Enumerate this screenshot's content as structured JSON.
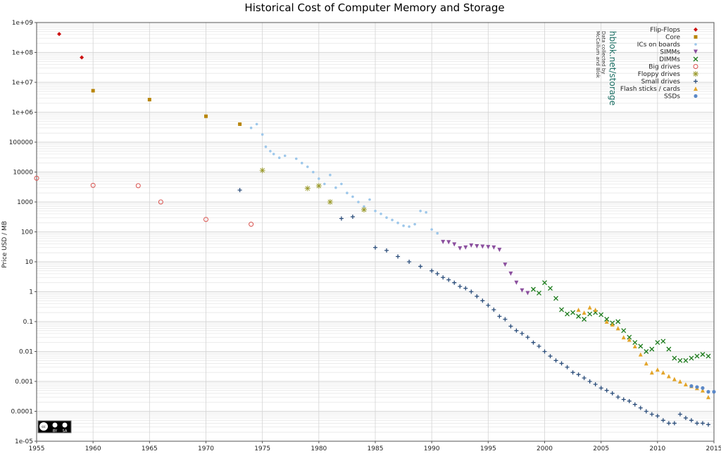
{
  "chart_data": {
    "type": "scatter",
    "title": "Historical Cost of Computer Memory and Storage",
    "xlabel": "",
    "ylabel": "Price USD / MB",
    "xlim": [
      1955,
      2015
    ],
    "ylim": [
      1e-05,
      1000000000
    ],
    "yscale": "log",
    "x_ticks": [
      1955,
      1960,
      1965,
      1970,
      1975,
      1980,
      1985,
      1990,
      1995,
      2000,
      2005,
      2010,
      2015
    ],
    "y_ticks": [
      1000000000.0,
      100000000.0,
      10000000.0,
      1000000.0,
      100000,
      10000,
      1000,
      100,
      10,
      1,
      0.1,
      0.01,
      0.001,
      0.0001,
      1e-05
    ],
    "y_tick_labels": [
      "1e+09",
      "1e+08",
      "1e+07",
      "1e+06",
      "100000",
      "10000",
      "1000",
      "100",
      "10",
      "1",
      "0.1",
      "0.01",
      "0.001",
      "0.0001",
      "1e-05"
    ],
    "grid": true,
    "legend_position": "top-right",
    "credit": "hblok.net/storage",
    "credit_note": [
      "Data collected by",
      "McCallum and Blok"
    ],
    "license_badge": [
      "cc",
      "BY",
      "SA"
    ],
    "series": [
      {
        "name": "Flip-Flops",
        "color": "#cc1111",
        "marker": "diamond",
        "points": [
          [
            1957,
            411041792
          ],
          [
            1959,
            67947725
          ]
        ]
      },
      {
        "name": "Core",
        "color": "#b8860b",
        "marker": "square",
        "points": [
          [
            1960,
            5242880
          ],
          [
            1965,
            2642412
          ],
          [
            1970,
            734003
          ],
          [
            1973,
            399360
          ]
        ]
      },
      {
        "name": "ICs on boards",
        "color": "#9dc7ea",
        "marker": "dot",
        "points": [
          [
            1974,
            300000
          ],
          [
            1974.5,
            400000
          ],
          [
            1975,
            180000
          ],
          [
            1975.3,
            70000
          ],
          [
            1975.7,
            50000
          ],
          [
            1976,
            40000
          ],
          [
            1976.5,
            30000
          ],
          [
            1977,
            35000
          ],
          [
            1978,
            28000
          ],
          [
            1978.5,
            20000
          ],
          [
            1979,
            15000
          ],
          [
            1979.5,
            10000
          ],
          [
            1980,
            6000
          ],
          [
            1980.5,
            4000
          ],
          [
            1981,
            8000
          ],
          [
            1981.5,
            3000
          ],
          [
            1982,
            4000
          ],
          [
            1982.5,
            2000
          ],
          [
            1983,
            1500
          ],
          [
            1983.5,
            1000
          ],
          [
            1984,
            700
          ],
          [
            1984.5,
            1200
          ],
          [
            1985,
            500
          ],
          [
            1985.5,
            400
          ],
          [
            1986,
            300
          ],
          [
            1986.5,
            250
          ],
          [
            1987,
            200
          ],
          [
            1987.5,
            160
          ],
          [
            1988,
            150
          ],
          [
            1988.5,
            180
          ],
          [
            1989,
            500
          ],
          [
            1989.5,
            450
          ],
          [
            1990,
            120
          ],
          [
            1990.5,
            90
          ]
        ]
      },
      {
        "name": "SIMMs",
        "color": "#8b4f9e",
        "marker": "triangle-down",
        "points": [
          [
            1991,
            46
          ],
          [
            1991.5,
            45
          ],
          [
            1992,
            38
          ],
          [
            1992.5,
            28
          ],
          [
            1993,
            30
          ],
          [
            1993.5,
            35
          ],
          [
            1994,
            33
          ],
          [
            1994.5,
            32
          ],
          [
            1995,
            31
          ],
          [
            1995.5,
            30
          ],
          [
            1996,
            25
          ],
          [
            1996.5,
            8
          ],
          [
            1997,
            4
          ],
          [
            1997.5,
            2
          ],
          [
            1998,
            1.1
          ],
          [
            1998.5,
            0.9
          ]
        ]
      },
      {
        "name": "DIMMs",
        "color": "#1a7a1a",
        "marker": "x",
        "points": [
          [
            1999,
            1.2
          ],
          [
            1999.5,
            0.9
          ],
          [
            2000,
            2
          ],
          [
            2000.5,
            1.3
          ],
          [
            2001,
            0.6
          ],
          [
            2001.5,
            0.25
          ],
          [
            2002,
            0.18
          ],
          [
            2002.5,
            0.2
          ],
          [
            2003,
            0.15
          ],
          [
            2003.5,
            0.12
          ],
          [
            2004,
            0.18
          ],
          [
            2004.5,
            0.2
          ],
          [
            2005,
            0.17
          ],
          [
            2005.5,
            0.12
          ],
          [
            2006,
            0.09
          ],
          [
            2006.5,
            0.1
          ],
          [
            2007,
            0.05
          ],
          [
            2007.5,
            0.03
          ],
          [
            2008,
            0.02
          ],
          [
            2008.5,
            0.015
          ],
          [
            2009,
            0.01
          ],
          [
            2009.5,
            0.012
          ],
          [
            2010,
            0.02
          ],
          [
            2010.5,
            0.022
          ],
          [
            2011,
            0.012
          ],
          [
            2011.5,
            0.006
          ],
          [
            2012,
            0.005
          ],
          [
            2012.5,
            0.005
          ],
          [
            2013,
            0.006
          ],
          [
            2013.5,
            0.007
          ],
          [
            2014,
            0.008
          ],
          [
            2014.5,
            0.007
          ]
        ]
      },
      {
        "name": "Big drives",
        "color": "#d9534f",
        "marker": "circle-open",
        "points": [
          [
            1955,
            6233
          ],
          [
            1960,
            3600
          ],
          [
            1964,
            3500
          ],
          [
            1966,
            1000
          ],
          [
            1970,
            260
          ],
          [
            1974,
            180
          ]
        ]
      },
      {
        "name": "Floppy drives",
        "color": "#9a9a2c",
        "marker": "star",
        "points": [
          [
            1975,
            11400
          ],
          [
            1979,
            2850
          ],
          [
            1980,
            3450
          ],
          [
            1981,
            1000
          ],
          [
            1984,
            550
          ]
        ]
      },
      {
        "name": "Small drives",
        "color": "#2b4d7a",
        "marker": "plus",
        "points": [
          [
            1973,
            2500
          ],
          [
            1982,
            280
          ],
          [
            1983,
            320
          ],
          [
            1985,
            30
          ],
          [
            1986,
            24
          ],
          [
            1987,
            15
          ],
          [
            1988,
            10
          ],
          [
            1989,
            7
          ],
          [
            1990,
            5
          ],
          [
            1990.5,
            4
          ],
          [
            1991,
            3
          ],
          [
            1991.5,
            2.5
          ],
          [
            1992,
            2
          ],
          [
            1992.5,
            1.5
          ],
          [
            1993,
            1.3
          ],
          [
            1993.5,
            1
          ],
          [
            1994,
            0.7
          ],
          [
            1994.5,
            0.5
          ],
          [
            1995,
            0.35
          ],
          [
            1995.5,
            0.25
          ],
          [
            1996,
            0.15
          ],
          [
            1996.5,
            0.12
          ],
          [
            1997,
            0.07
          ],
          [
            1997.5,
            0.05
          ],
          [
            1998,
            0.04
          ],
          [
            1998.5,
            0.03
          ],
          [
            1999,
            0.02
          ],
          [
            1999.5,
            0.015
          ],
          [
            2000,
            0.01
          ],
          [
            2000.5,
            0.007
          ],
          [
            2001,
            0.005
          ],
          [
            2001.5,
            0.004
          ],
          [
            2002,
            0.003
          ],
          [
            2002.5,
            0.002
          ],
          [
            2003,
            0.0017
          ],
          [
            2003.5,
            0.0013
          ],
          [
            2004,
            0.001
          ],
          [
            2004.5,
            0.0008
          ],
          [
            2005,
            0.0006
          ],
          [
            2005.5,
            0.0005
          ],
          [
            2006,
            0.0004
          ],
          [
            2006.5,
            0.0003
          ],
          [
            2007,
            0.00025
          ],
          [
            2007.5,
            0.00022
          ],
          [
            2008,
            0.00017
          ],
          [
            2008.5,
            0.00013
          ],
          [
            2009,
            0.0001
          ],
          [
            2009.5,
            8e-05
          ],
          [
            2010,
            7e-05
          ],
          [
            2010.5,
            5e-05
          ],
          [
            2011,
            4e-05
          ],
          [
            2011.5,
            4e-05
          ],
          [
            2012,
            8e-05
          ],
          [
            2012.5,
            6e-05
          ],
          [
            2013,
            5e-05
          ],
          [
            2013.5,
            4e-05
          ],
          [
            2014,
            4e-05
          ],
          [
            2014.5,
            3.6e-05
          ]
        ]
      },
      {
        "name": "Flash sticks / cards",
        "color": "#e3a52a",
        "marker": "triangle",
        "points": [
          [
            2003,
            0.25
          ],
          [
            2003.5,
            0.2
          ],
          [
            2004,
            0.3
          ],
          [
            2004.5,
            0.25
          ],
          [
            2005.5,
            0.1
          ],
          [
            2006,
            0.08
          ],
          [
            2006.5,
            0.06
          ],
          [
            2007,
            0.03
          ],
          [
            2007.5,
            0.025
          ],
          [
            2008,
            0.015
          ],
          [
            2008.5,
            0.008
          ],
          [
            2009,
            0.004
          ],
          [
            2009.5,
            0.002
          ],
          [
            2010,
            0.0025
          ],
          [
            2010.5,
            0.002
          ],
          [
            2011,
            0.0015
          ],
          [
            2011.5,
            0.0012
          ],
          [
            2012,
            0.001
          ],
          [
            2012.5,
            0.0008
          ],
          [
            2013,
            0.0007
          ],
          [
            2013.5,
            0.0006
          ],
          [
            2014,
            0.0005
          ],
          [
            2014.5,
            0.0003
          ]
        ]
      },
      {
        "name": "SSDs",
        "color": "#5b88c7",
        "marker": "dot-blue",
        "points": [
          [
            2013,
            0.0007
          ],
          [
            2013.5,
            0.00065
          ],
          [
            2014,
            0.0006
          ],
          [
            2014.5,
            0.00045
          ],
          [
            2015,
            0.00045
          ]
        ]
      }
    ]
  }
}
